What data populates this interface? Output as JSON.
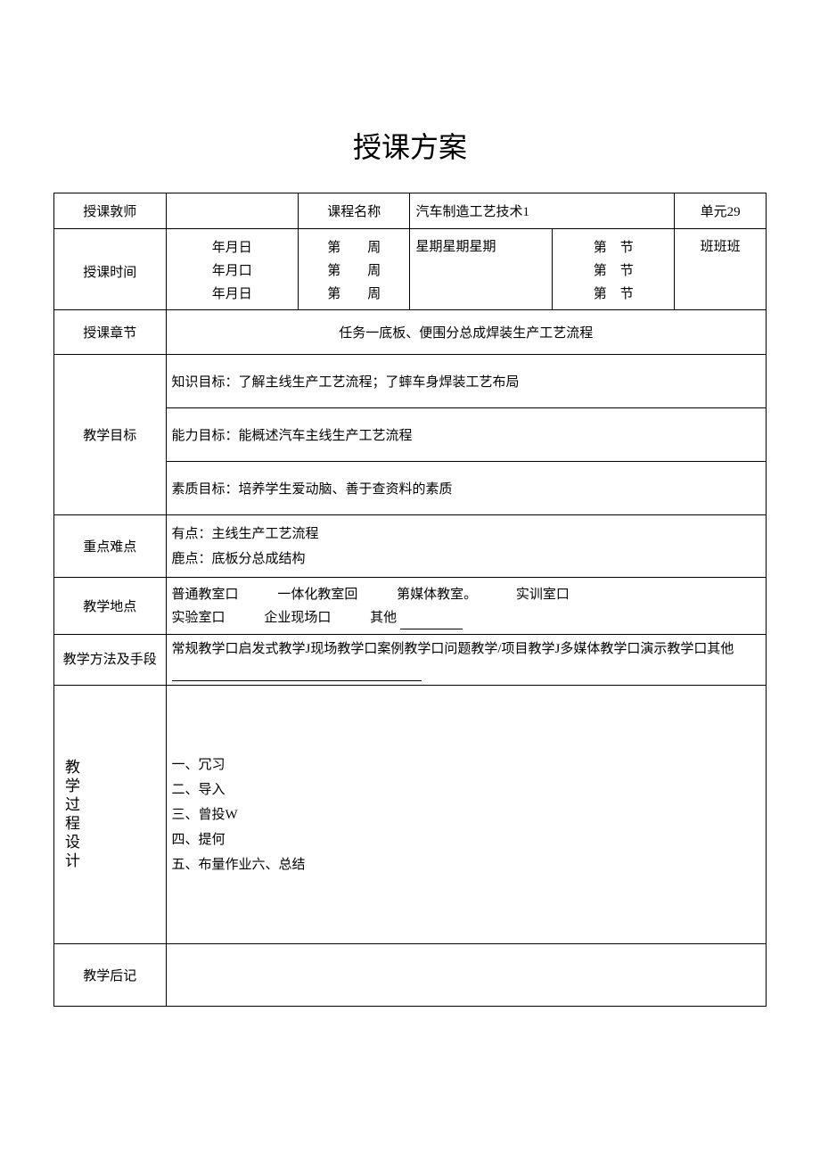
{
  "title": "授课方案",
  "labels": {
    "teacher": "授课敦师",
    "course_name": "课程名称",
    "unit": "单元29",
    "time": "授课时间",
    "chapter": "授课章节",
    "goal": "教学目标",
    "keypoint": "重点难点",
    "location": "教学地点",
    "method": "教学方法及手段",
    "process": "教学过程设计",
    "postscript": "教学后记"
  },
  "course": {
    "name": "汽车制造工艺技术1"
  },
  "time_rows": {
    "dates": [
      "年月日",
      "年月口",
      "年月日"
    ],
    "weeks": [
      "第　　周",
      "第　　周",
      "第　　周"
    ],
    "weekday": "星期星期星期",
    "periods": [
      "第　节",
      "第　节",
      "第　节"
    ],
    "classes": "班班班"
  },
  "chapter": "任务一底板、便围分总成焊装生产工艺流程",
  "goals": {
    "knowledge": "知识目标：了解主线生产工艺流程；了蟀车身焊装工艺布局",
    "ability": "能力目标：能概述汽车主线生产工艺流程",
    "quality": "素质目标：培养学生爱动脑、善于查资料的素质"
  },
  "keypoints": {
    "key": "有点：主线生产工艺流程",
    "difficult": "鹿点：底板分总成结构"
  },
  "location": {
    "row1_a": "普通教室口",
    "row1_b": "一体化教室回",
    "row1_c": "第媒体教室。",
    "row1_d": "实训室口",
    "row2_a": "实验室口",
    "row2_b": "企业现场口",
    "row2_c": "其他"
  },
  "method": "常规教学口启发式教学J现场教学口案例教学口问题教学/项目教学J多媒体教学口演示教学口其他",
  "process": {
    "l1": "一、冗习",
    "l2": "二、导入",
    "l3": "三、曾投W",
    "l4": "四、提何",
    "l5": "五、布量作业六、总结"
  },
  "colors": {
    "text": "#000000",
    "background": "#ffffff",
    "border": "#000000"
  }
}
